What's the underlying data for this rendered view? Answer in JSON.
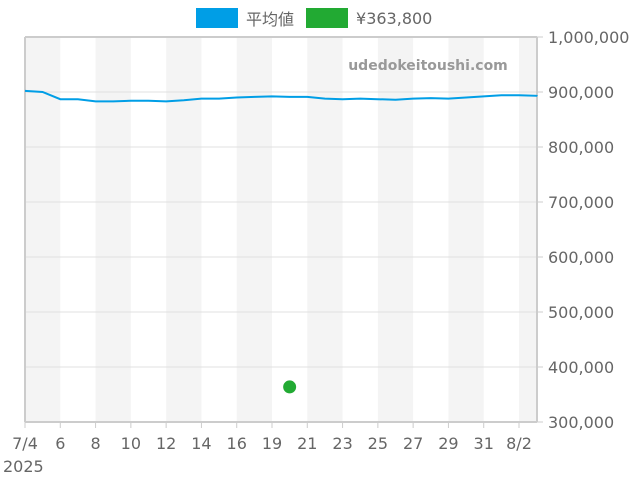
{
  "legend": {
    "items": [
      {
        "label": "平均値",
        "color": "#009ee6"
      },
      {
        "label": "¥363,800",
        "color": "#22aa33"
      }
    ]
  },
  "watermark": "udedokeitoushi.com",
  "chart_data": {
    "type": "line",
    "title": "",
    "xlabel": "",
    "ylabel": "",
    "year_label": "2025",
    "x_tick_labels": [
      "7/4",
      "6",
      "8",
      "10",
      "12",
      "14",
      "16",
      "19",
      "21",
      "23",
      "25",
      "27",
      "29",
      "31",
      "8/2"
    ],
    "x_tick_day_index": [
      0,
      2,
      4,
      6,
      8,
      10,
      12,
      14,
      16,
      18,
      20,
      22,
      24,
      26,
      28
    ],
    "y_tick_labels": [
      "1,000,000",
      "900,000",
      "800,000",
      "700,000",
      "600,000",
      "500,000",
      "400,000",
      "300,000"
    ],
    "ylim": [
      300000,
      1000000
    ],
    "grid": true,
    "legend_position": "top",
    "series": [
      {
        "name": "平均値",
        "color": "#009ee6",
        "x": [
          "7/4",
          "7/5",
          "7/6",
          "7/7",
          "7/8",
          "7/9",
          "7/10",
          "7/11",
          "7/12",
          "7/13",
          "7/14",
          "7/15",
          "7/16",
          "7/17",
          "7/18",
          "7/19",
          "7/20",
          "7/21",
          "7/22",
          "7/23",
          "7/24",
          "7/25",
          "7/26",
          "7/27",
          "7/28",
          "7/29",
          "7/30",
          "7/31",
          "8/1",
          "8/2",
          "8/3"
        ],
        "values": [
          902000,
          900000,
          887000,
          887000,
          883000,
          883000,
          884000,
          884000,
          883000,
          885000,
          888000,
          888000,
          890000,
          891000,
          892000,
          891000,
          891000,
          888000,
          887000,
          888000,
          887000,
          886000,
          888000,
          889000,
          888000,
          890000,
          892000,
          894000,
          894000,
          893000,
          892000
        ]
      },
      {
        "name": "¥363,800",
        "color": "#22aa33",
        "type": "scatter",
        "x": [
          "7/19"
        ],
        "values": [
          363800
        ]
      }
    ]
  }
}
